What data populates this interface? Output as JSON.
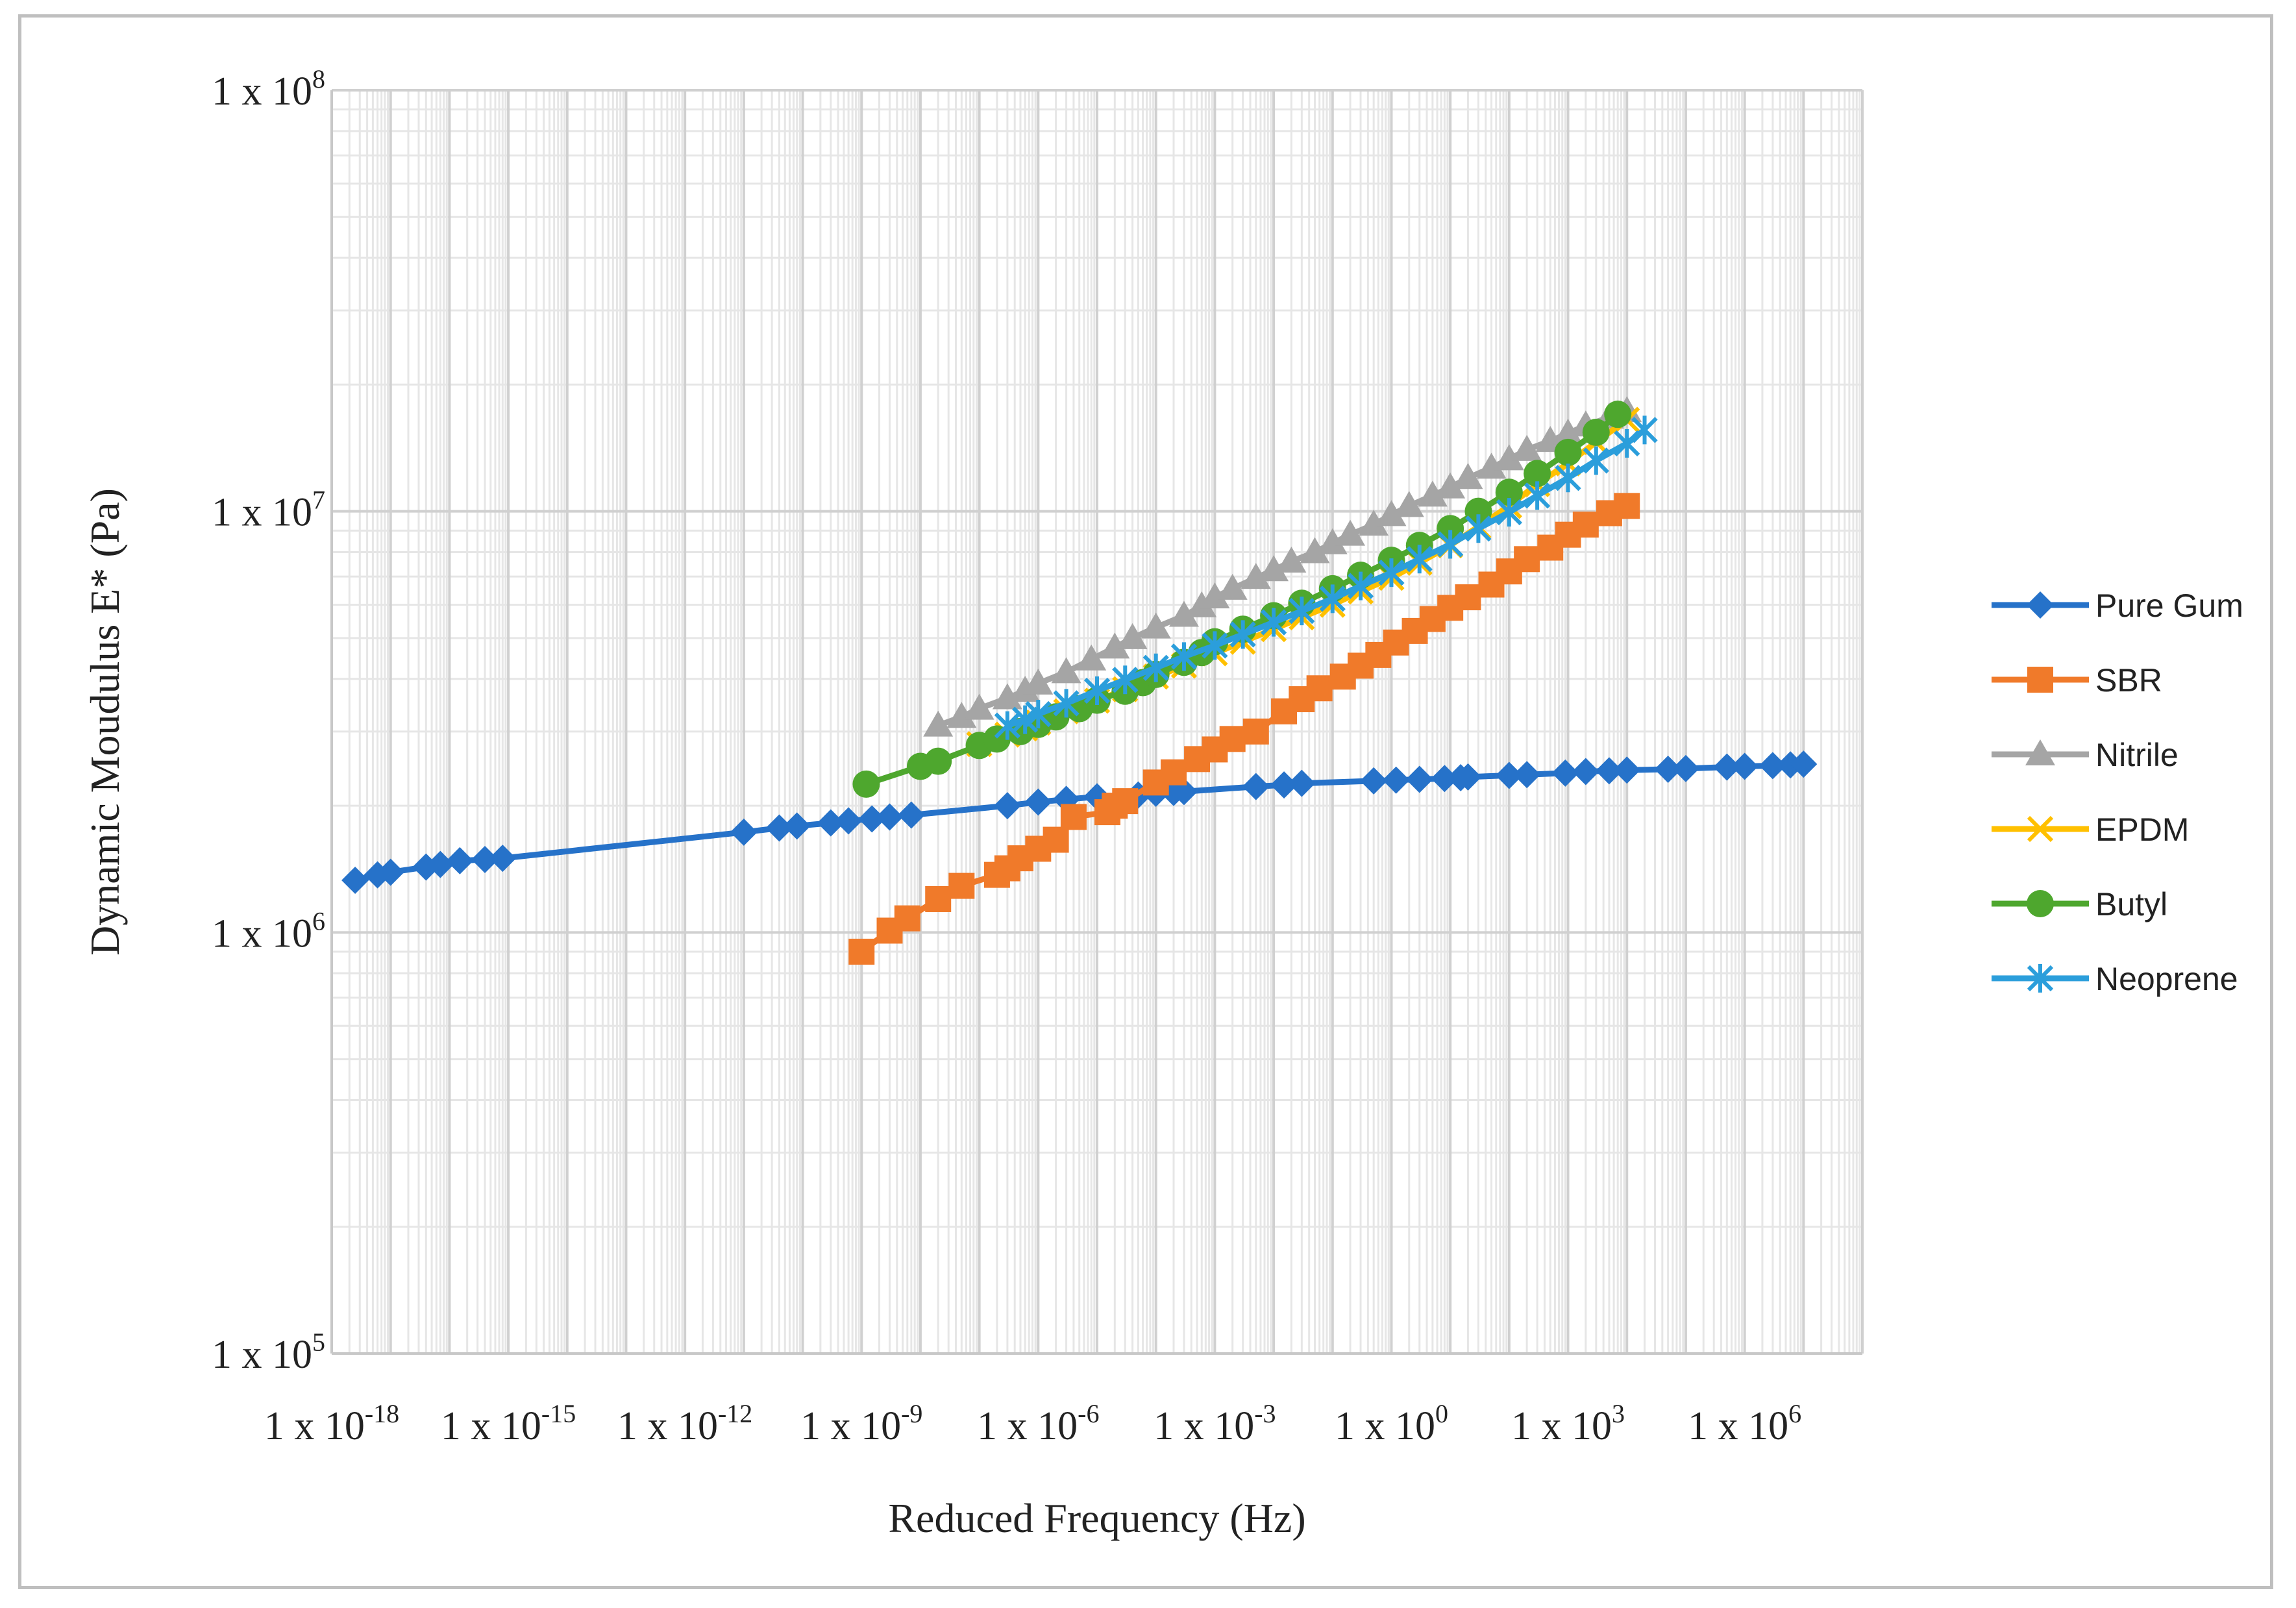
{
  "chart_data": {
    "type": "line",
    "title": "",
    "xlabel": "Reduced Frequency (Hz)",
    "ylabel": "Dynamic Moudulus E* (Pa)",
    "x_scale": "log",
    "y_scale": "log",
    "xlim": [
      1e-18,
      100000000.0
    ],
    "ylim": [
      100000,
      100000000
    ],
    "x_ticks": [
      {
        "base": "1 x 10",
        "exp": "-18"
      },
      {
        "base": "1 x 10",
        "exp": "-15"
      },
      {
        "base": "1 x 10",
        "exp": "-12"
      },
      {
        "base": "1 x 10",
        "exp": "-9"
      },
      {
        "base": "1 x 10",
        "exp": "-6"
      },
      {
        "base": "1 x 10",
        "exp": "-3"
      },
      {
        "base": "1 x 10",
        "exp": "0"
      },
      {
        "base": "1 x 10",
        "exp": "3"
      },
      {
        "base": "1 x 10",
        "exp": "6"
      }
    ],
    "x_tick_values": [
      1e-18,
      1e-15,
      1e-12,
      1e-09,
      1e-06,
      0.001,
      1,
      1000.0,
      1000000.0
    ],
    "y_ticks": [
      {
        "base": "1 x 10",
        "exp": "5"
      },
      {
        "base": "1 x 10",
        "exp": "6"
      },
      {
        "base": "1 x 10",
        "exp": "7"
      },
      {
        "base": "1 x 10",
        "exp": "8"
      }
    ],
    "y_tick_values": [
      100000,
      1000000,
      10000000,
      100000000
    ],
    "grid": true,
    "legend_position": "right",
    "series": [
      {
        "name": "Pure Gum",
        "color": "#2672C9",
        "marker": "diamond",
        "x": [
          2.5e-18,
          6e-18,
          1e-17,
          4e-17,
          7e-17,
          1.5e-16,
          4e-16,
          8e-16,
          1e-11,
          4e-11,
          8e-11,
          3e-10,
          6e-10,
          1.5e-09,
          3e-09,
          7e-09,
          3e-07,
          1e-06,
          3e-06,
          1e-05,
          5e-05,
          0.0001,
          0.0002,
          0.0003,
          0.005,
          0.015,
          0.03,
          0.5,
          1.2,
          3,
          8,
          15,
          20,
          100,
          200,
          900,
          2000,
          5000,
          10000.0,
          50000.0,
          100000.0,
          500000.0,
          1000000.0,
          3000000.0,
          6000000.0,
          10000000.0
        ],
        "y": [
          1330000,
          1370000,
          1390000,
          1430000,
          1450000,
          1480000,
          1490000,
          1500000,
          1730000,
          1770000,
          1790000,
          1820000,
          1840000,
          1860000,
          1880000,
          1900000,
          2000000,
          2040000,
          2070000,
          2100000,
          2120000,
          2140000,
          2150000,
          2160000,
          2220000,
          2240000,
          2260000,
          2290000,
          2300000,
          2310000,
          2320000,
          2330000,
          2340000,
          2360000,
          2370000,
          2390000,
          2410000,
          2420000,
          2430000,
          2440000,
          2450000,
          2470000,
          2480000,
          2490000,
          2500000,
          2510000
        ]
      },
      {
        "name": "SBR",
        "color": "#F07A2A",
        "marker": "square",
        "x": [
          1e-09,
          3e-09,
          6e-09,
          2e-08,
          5e-08,
          2e-07,
          3e-07,
          5e-07,
          1e-06,
          2e-06,
          4e-06,
          1.5e-05,
          2e-05,
          3e-05,
          0.0001,
          0.0002,
          0.0005,
          0.001,
          0.002,
          0.005,
          0.015,
          0.03,
          0.06,
          0.15,
          0.3,
          0.6,
          1.2,
          2.5,
          5,
          10,
          20,
          50,
          100,
          200,
          500,
          1000,
          2000,
          5000,
          10000.0
        ],
        "y": [
          900000,
          1010000,
          1080000,
          1200000,
          1290000,
          1370000,
          1420000,
          1500000,
          1580000,
          1660000,
          1880000,
          1930000,
          2000000,
          2050000,
          2270000,
          2400000,
          2580000,
          2720000,
          2880000,
          3000000,
          3350000,
          3580000,
          3800000,
          4050000,
          4300000,
          4560000,
          4880000,
          5200000,
          5550000,
          5900000,
          6250000,
          6700000,
          7200000,
          7700000,
          8200000,
          8800000,
          9300000,
          9900000,
          10300000
        ]
      },
      {
        "name": "Nitrile",
        "color": "#A5A5A5",
        "marker": "triangle",
        "x": [
          2e-08,
          5e-08,
          1e-07,
          3e-07,
          6e-07,
          1e-06,
          3e-06,
          8e-06,
          2e-05,
          4e-05,
          0.0001,
          0.0003,
          0.0006,
          0.001,
          0.002,
          0.005,
          0.01,
          0.02,
          0.05,
          0.1,
          0.2,
          0.5,
          1,
          2,
          5,
          10,
          20,
          50,
          100,
          200,
          500,
          1000,
          2000,
          5000,
          10000.0
        ],
        "y": [
          3100000,
          3250000,
          3400000,
          3600000,
          3750000,
          3900000,
          4150000,
          4450000,
          4750000,
          5000000,
          5300000,
          5650000,
          5950000,
          6250000,
          6550000,
          6950000,
          7250000,
          7600000,
          8000000,
          8400000,
          8800000,
          9300000,
          9800000,
          10300000,
          10900000,
          11400000,
          12000000,
          12700000,
          13300000,
          14000000,
          14700000,
          15300000,
          16000000,
          16700000,
          17300000
        ]
      },
      {
        "name": "EPDM",
        "color": "#FFC000",
        "marker": "x",
        "x": [
          1e-07,
          3e-07,
          6e-07,
          1e-06,
          3e-06,
          1e-05,
          3e-05,
          0.0001,
          0.0003,
          0.001,
          0.003,
          0.01,
          0.03,
          0.1,
          0.3,
          1,
          3,
          10,
          30,
          100,
          300,
          1000,
          3000,
          10000.0
        ],
        "y": [
          2800000,
          2950000,
          3050000,
          3150000,
          3350000,
          3550000,
          3780000,
          4050000,
          4300000,
          4600000,
          4900000,
          5250000,
          5600000,
          6000000,
          6450000,
          6950000,
          7550000,
          8300000,
          9200000,
          10300000,
          11600000,
          13000000,
          14600000,
          16500000
        ]
      },
      {
        "name": "Butyl",
        "color": "#4EA72E",
        "marker": "circle",
        "x": [
          1.2e-09,
          1e-08,
          2e-08,
          1e-07,
          2e-07,
          5e-07,
          1e-06,
          2e-06,
          5e-06,
          1e-05,
          3e-05,
          6e-05,
          0.0001,
          0.0003,
          0.0006,
          0.001,
          0.003,
          0.01,
          0.03,
          0.1,
          0.3,
          1,
          3,
          10,
          30,
          100,
          300,
          1000,
          3000,
          7000
        ],
        "y": [
          2250000,
          2480000,
          2550000,
          2780000,
          2880000,
          3000000,
          3120000,
          3250000,
          3400000,
          3560000,
          3740000,
          3920000,
          4100000,
          4380000,
          4620000,
          4900000,
          5250000,
          5650000,
          6050000,
          6550000,
          7050000,
          7650000,
          8300000,
          9100000,
          10000000,
          11100000,
          12300000,
          13800000,
          15400000,
          17000000
        ]
      },
      {
        "name": "Neoprene",
        "color": "#2B9EDB",
        "marker": "asterisk",
        "x": [
          3e-07,
          6e-07,
          1e-06,
          3e-06,
          1e-05,
          3e-05,
          0.0001,
          0.0003,
          0.001,
          0.003,
          0.01,
          0.03,
          0.1,
          0.3,
          1,
          3,
          10,
          30,
          100,
          300,
          1000,
          3000,
          10000.0,
          20000.0
        ],
        "y": [
          3100000,
          3200000,
          3300000,
          3500000,
          3750000,
          3980000,
          4250000,
          4520000,
          4800000,
          5100000,
          5450000,
          5800000,
          6200000,
          6650000,
          7150000,
          7700000,
          8350000,
          9100000,
          9950000,
          10900000,
          12000000,
          13200000,
          14500000,
          15600000
        ]
      }
    ]
  }
}
